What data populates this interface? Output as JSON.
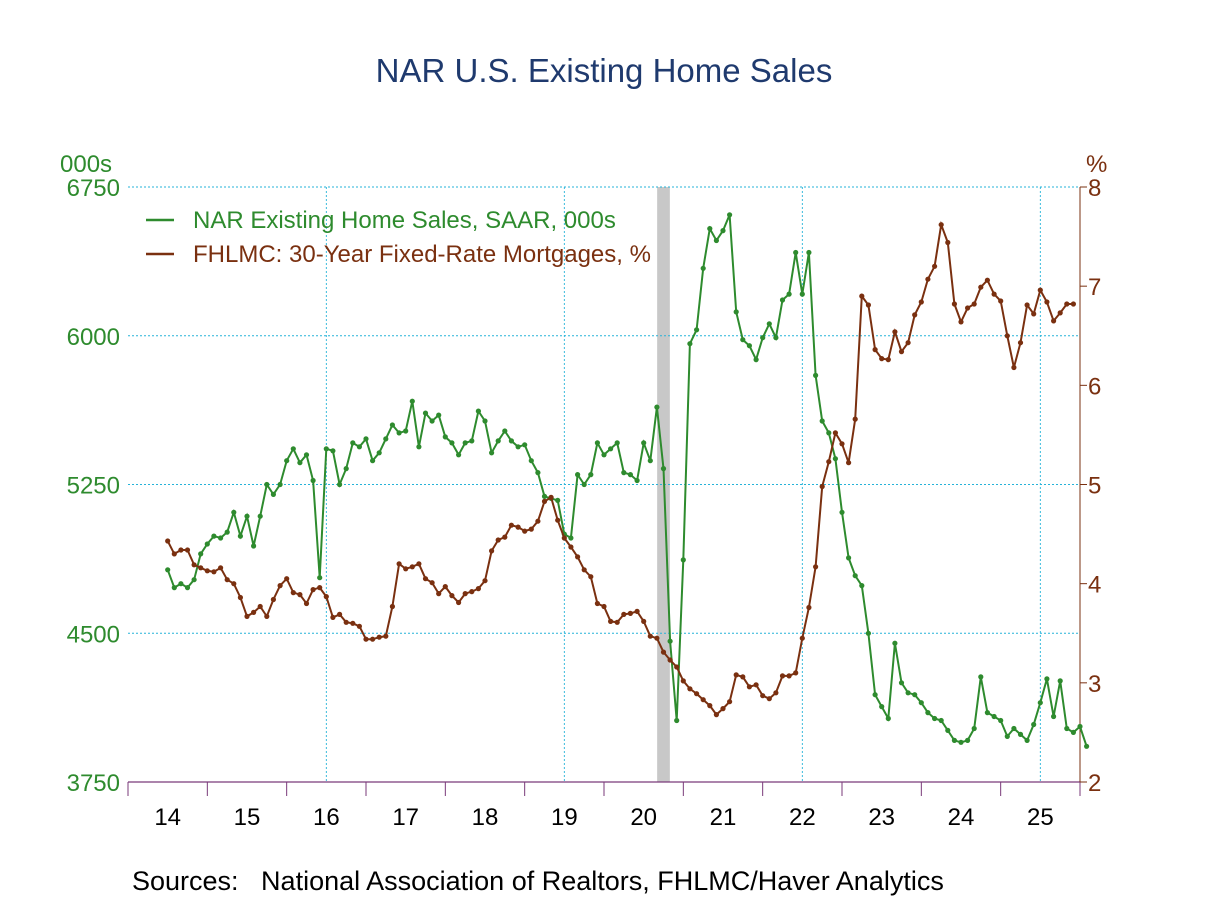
{
  "title": "NAR U.S. Existing Home Sales",
  "sources_label": "Sources:   National Association of Realtors, FHLMC/Haver Analytics",
  "chart_data": {
    "type": "line",
    "title": "NAR U.S. Existing Home Sales",
    "left_axis": {
      "unit_label": "000s",
      "range": [
        3750,
        6750
      ],
      "ticks": [
        "3750",
        "4500",
        "5250",
        "6000",
        "6750"
      ],
      "color": "#2e8b2e"
    },
    "right_axis": {
      "unit_label": "%",
      "range": [
        2,
        8
      ],
      "ticks": [
        "2",
        "3",
        "4",
        "5",
        "6",
        "7",
        "8"
      ],
      "color": "#7a3010"
    },
    "x_axis": {
      "range": [
        2013.5,
        2025.5
      ],
      "tick_labels": [
        "14",
        "15",
        "16",
        "17",
        "18",
        "19",
        "20",
        "21",
        "22",
        "23",
        "24",
        "25"
      ]
    },
    "grid": true,
    "legend_position": "top-left",
    "recession_bands": [
      [
        2020.17,
        2020.33
      ]
    ],
    "series": [
      {
        "name": "NAR Existing Home Sales, SAAR, 000s",
        "axis": "left",
        "color": "#2e8b2e",
        "start": "2014-01",
        "values": [
          4820,
          4730,
          4750,
          4730,
          4770,
          4900,
          4950,
          4990,
          4980,
          5010,
          5110,
          4990,
          5090,
          4940,
          5090,
          5250,
          5200,
          5250,
          5370,
          5430,
          5360,
          5400,
          5270,
          4780,
          5430,
          5420,
          5250,
          5330,
          5460,
          5440,
          5480,
          5370,
          5410,
          5480,
          5550,
          5510,
          5520,
          5670,
          5440,
          5610,
          5570,
          5600,
          5490,
          5460,
          5400,
          5460,
          5470,
          5620,
          5570,
          5410,
          5470,
          5520,
          5470,
          5440,
          5450,
          5370,
          5310,
          5190,
          5180,
          5170,
          5000,
          4980,
          5300,
          5250,
          5300,
          5460,
          5400,
          5430,
          5460,
          5310,
          5300,
          5270,
          5460,
          5370,
          5640,
          5330,
          4460,
          4060,
          4870,
          5960,
          6030,
          6340,
          6540,
          6480,
          6530,
          6610,
          6120,
          5980,
          5950,
          5880,
          5990,
          6060,
          5990,
          6180,
          6210,
          6420,
          6210,
          6420,
          5800,
          5570,
          5510,
          5380,
          5110,
          4880,
          4790,
          4740,
          4500,
          4190,
          4130,
          4070,
          4450,
          4250,
          4200,
          4190,
          4150,
          4100,
          4070,
          4060,
          4010,
          3960,
          3950,
          3960,
          4020,
          4280,
          4100,
          4080,
          4060,
          3980,
          4020,
          3990,
          3960,
          4040,
          4150,
          4270,
          4080,
          4260,
          4020,
          4000,
          4030,
          3930
        ]
      },
      {
        "name": "FHLMC: 30-Year Fixed-Rate Mortgages, %",
        "axis": "right",
        "color": "#7a3010",
        "start": "2014-01",
        "values": [
          4.43,
          4.3,
          4.34,
          4.34,
          4.19,
          4.16,
          4.13,
          4.12,
          4.16,
          4.04,
          4.0,
          3.86,
          3.67,
          3.71,
          3.77,
          3.67,
          3.84,
          3.98,
          4.05,
          3.91,
          3.89,
          3.8,
          3.94,
          3.96,
          3.87,
          3.66,
          3.69,
          3.61,
          3.6,
          3.57,
          3.44,
          3.44,
          3.46,
          3.47,
          3.77,
          4.2,
          4.15,
          4.17,
          4.2,
          4.05,
          4.01,
          3.9,
          3.97,
          3.88,
          3.81,
          3.9,
          3.92,
          3.95,
          4.03,
          4.33,
          4.44,
          4.47,
          4.59,
          4.57,
          4.53,
          4.55,
          4.63,
          4.83,
          4.87,
          4.64,
          4.46,
          4.37,
          4.27,
          4.14,
          4.07,
          3.8,
          3.77,
          3.62,
          3.61,
          3.69,
          3.7,
          3.72,
          3.62,
          3.47,
          3.45,
          3.31,
          3.23,
          3.16,
          3.02,
          2.94,
          2.89,
          2.83,
          2.77,
          2.68,
          2.74,
          2.81,
          3.08,
          3.06,
          2.96,
          2.98,
          2.87,
          2.84,
          2.9,
          3.07,
          3.07,
          3.1,
          3.45,
          3.76,
          4.17,
          4.98,
          5.23,
          5.52,
          5.41,
          5.22,
          5.66,
          6.9,
          6.81,
          6.36,
          6.27,
          6.26,
          6.54,
          6.34,
          6.43,
          6.71,
          6.84,
          7.07,
          7.2,
          7.62,
          7.44,
          6.82,
          6.64,
          6.78,
          6.82,
          6.99,
          7.06,
          6.92,
          6.85,
          6.5,
          6.18,
          6.43,
          6.81,
          6.72,
          6.96,
          6.84,
          6.65,
          6.73,
          6.82,
          6.82
        ]
      }
    ]
  }
}
